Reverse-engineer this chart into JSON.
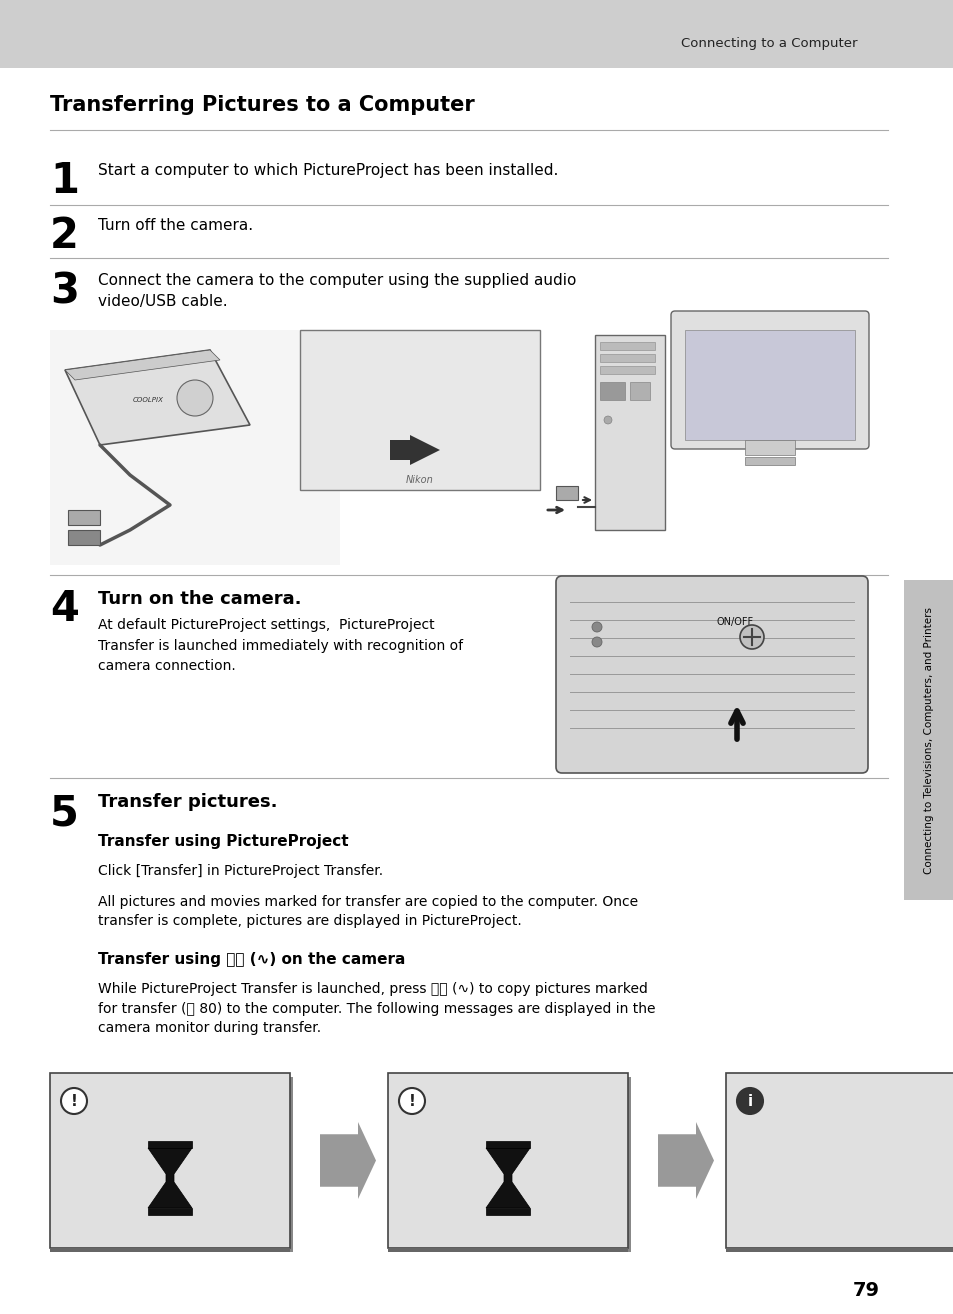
{
  "page_bg": "#ffffff",
  "header_bg": "#cecece",
  "header_text": "Connecting to a Computer",
  "title": "Transferring Pictures to a Computer",
  "step1_num": "1",
  "step1_text": "Start a computer to which PictureProject has been installed.",
  "step2_num": "2",
  "step2_text": "Turn off the camera.",
  "step3_num": "3",
  "step3_text": "Connect the camera to the computer using the supplied audio\nvideo/USB cable.",
  "step4_num": "4",
  "step4_title": "Turn on the camera.",
  "step4_body": "At default PictureProject settings,  PictureProject\nTransfer is launched immediately with recognition of\ncamera connection.",
  "step5_num": "5",
  "step5_title": "Transfer pictures.",
  "sub1_title": "Transfer using PictureProject",
  "sub1_text": "Click [Transfer] in PictureProject Transfer.",
  "sub2_text": "All pictures and movies marked for transfer are copied to the computer. Once\ntransfer is complete, pictures are displayed in PictureProject.",
  "sub3_title": "Transfer using ⓈⓀ (∿) on the camera",
  "sub3_text": "While PictureProject Transfer is launched, press ⓈⓀ (∿) to copy pictures marked\nfor transfer (Ⓜ 80) to the computer. The following messages are displayed in the\ncamera monitor during transfer.",
  "sidebar_text": "Connecting to Televisions, Computers, and Printers",
  "page_num": "79",
  "text_color": "#000000",
  "line_color": "#aaaaaa"
}
